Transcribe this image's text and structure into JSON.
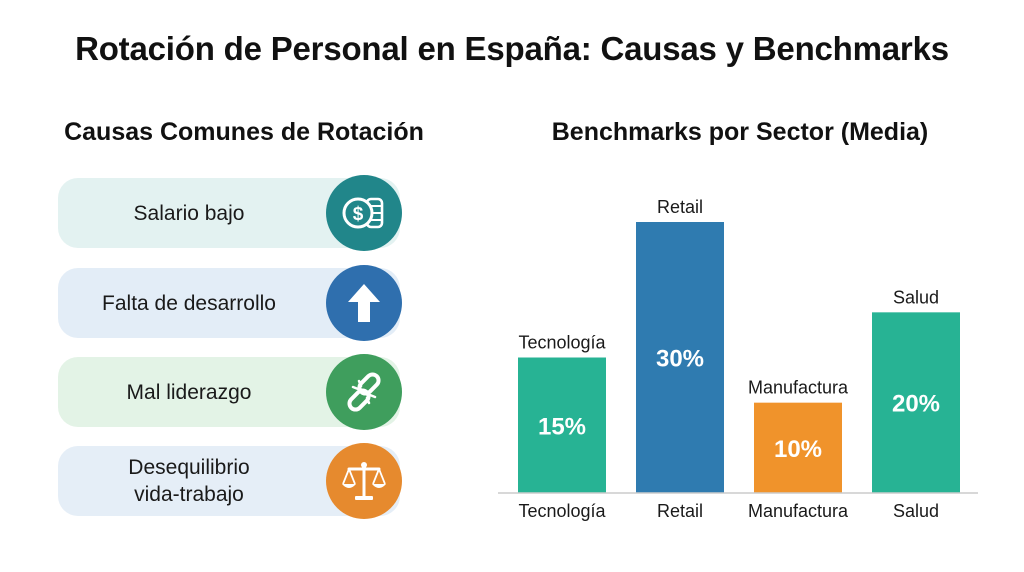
{
  "title": "Rotación de Personal en España: Causas y Benchmarks",
  "causes": {
    "heading": "Causas Comunes de Rotación",
    "items": [
      {
        "label": "Salario bajo",
        "icon": "coins-dollar-icon",
        "card_color": "#e3f2f1",
        "badge_color": "#21868a"
      },
      {
        "label": "Falta de desarrollo",
        "icon": "arrow-up-icon",
        "card_color": "#e3edf7",
        "badge_color": "#2f6fae"
      },
      {
        "label": "Mal liderazgo",
        "icon": "broken-link-icon",
        "card_color": "#e3f3e6",
        "badge_color": "#3f9e5d"
      },
      {
        "label": "Desequilibrio\nvida-trabajo",
        "icon": "balance-scale-icon",
        "card_color": "#e5eef7",
        "badge_color": "#e68a2e"
      }
    ]
  },
  "chart_data": {
    "type": "bar",
    "title": "Benchmarks por Sector (Media)",
    "categories": [
      "Tecnología",
      "Retail",
      "Manufactura",
      "Salud"
    ],
    "values": [
      15,
      30,
      10,
      20
    ],
    "data_labels": [
      "15%",
      "30%",
      "10%",
      "20%"
    ],
    "colors": [
      "#27b394",
      "#2f7bb0",
      "#f0932b",
      "#27b394"
    ],
    "ylim": [
      0,
      30
    ],
    "grid": false,
    "legend": "none"
  }
}
